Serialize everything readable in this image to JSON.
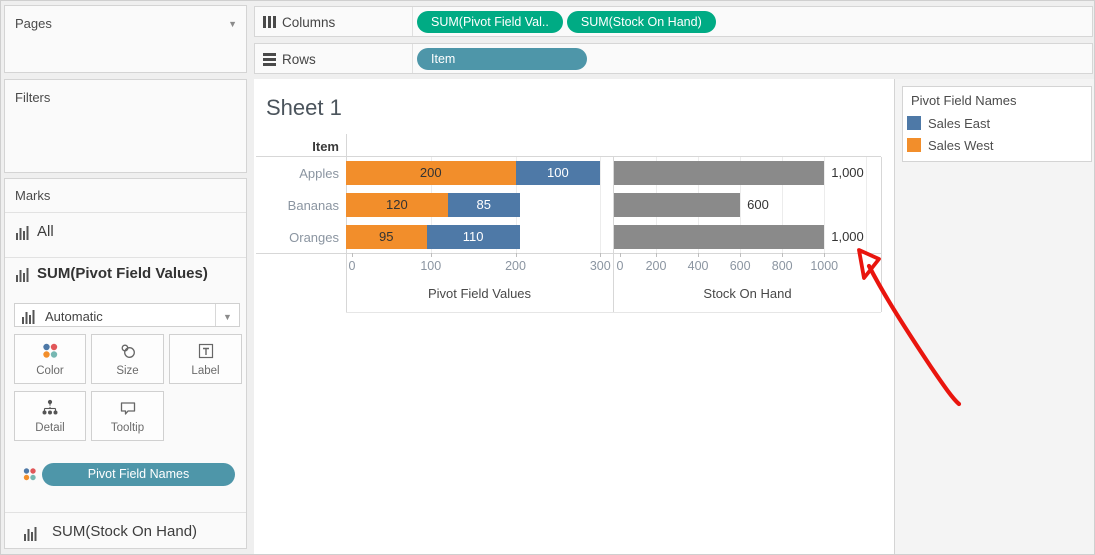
{
  "left_panel": {
    "pages_label": "Pages",
    "filters_label": "Filters",
    "marks": {
      "title": "Marks",
      "all_label": "All",
      "active_card_title": "SUM(Pivot Field Values)",
      "mark_type": "Automatic",
      "buttons": [
        {
          "label": "Color",
          "icon": "color"
        },
        {
          "label": "Size",
          "icon": "size"
        },
        {
          "label": "Label",
          "icon": "label"
        },
        {
          "label": "Detail",
          "icon": "detail"
        },
        {
          "label": "Tooltip",
          "icon": "tooltip"
        }
      ],
      "encoding_pill_label": "Pivot Field Names",
      "collapsed_card_title": "SUM(Stock On Hand)"
    }
  },
  "shelves": {
    "columns": {
      "label": "Columns",
      "pills": [
        {
          "label": "SUM(Pivot Field Val..",
          "kind": "measure"
        },
        {
          "label": "SUM(Stock On Hand)",
          "kind": "measure"
        }
      ]
    },
    "rows": {
      "label": "Rows",
      "pills": [
        {
          "label": "Item",
          "kind": "dimension"
        }
      ]
    }
  },
  "sheet": {
    "title": "Sheet 1"
  },
  "legend": {
    "title": "Pivot Field Names",
    "items": [
      {
        "label": "Sales East",
        "color": "#4e79a7"
      },
      {
        "label": "Sales West",
        "color": "#f28e2b"
      }
    ]
  },
  "chart_data": {
    "type": "bar",
    "orientation": "horizontal",
    "row_field": "Item",
    "categories": [
      "Apples",
      "Bananas",
      "Oranges"
    ],
    "panes": [
      {
        "axis_title": "Pivot Field Values",
        "tick_values": [
          0,
          100,
          200,
          300
        ],
        "tick_labels": [
          "0",
          "100",
          "200",
          "300"
        ],
        "grid_values": [
          100,
          200,
          300
        ],
        "axis_max": 315,
        "stacked": true,
        "series": [
          {
            "name": "Sales West",
            "color": "#f28e2b",
            "label_color": "#333333",
            "values": [
              200,
              120,
              95
            ],
            "value_labels": [
              "200",
              "120",
              "95"
            ]
          },
          {
            "name": "Sales East",
            "color": "#4e79a7",
            "label_color": "#ffffff",
            "values": [
              100,
              85,
              110
            ],
            "value_labels": [
              "100",
              "85",
              "110"
            ]
          }
        ]
      },
      {
        "axis_title": "Stock On Hand",
        "tick_values": [
          0,
          200,
          400,
          600,
          800,
          1000
        ],
        "tick_labels": [
          "0",
          "200",
          "400",
          "600",
          "800",
          "1000"
        ],
        "grid_values": [
          200,
          400,
          600,
          800,
          1000,
          1200
        ],
        "axis_max": 1270,
        "stacked": false,
        "series": [
          {
            "name": "Stock On Hand",
            "color": "#8a8a8a",
            "label_color": "#333333",
            "label_outside": true,
            "values": [
              1000,
              600,
              1000
            ],
            "value_labels": [
              "1,000",
              "600",
              "1,000"
            ]
          }
        ]
      }
    ]
  },
  "annotation": {
    "type": "hand-drawn-arrow",
    "color": "#e9150e",
    "points_at": "Oranges Stock On Hand label 1,000"
  },
  "colors": {
    "measure_pill": "#00ab84",
    "dimension_pill": "#4e96a9",
    "bar_gray": "#8a8a8a"
  }
}
